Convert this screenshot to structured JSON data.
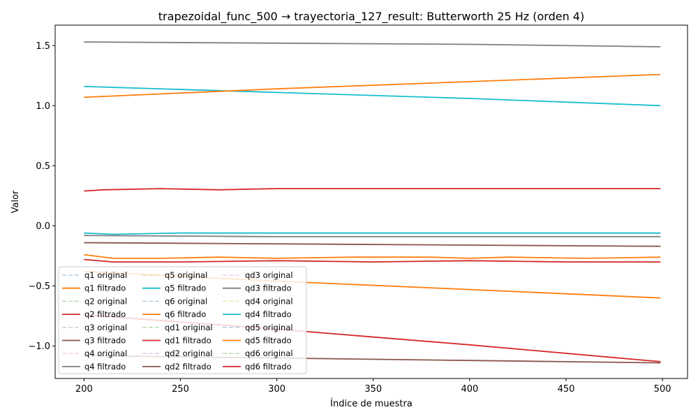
{
  "chart_data": {
    "type": "line",
    "title": "trapezoidal_func_500 → trayectoria_127_result: Butterworth 25 Hz (orden 4)",
    "xlabel": "Índice de muestra",
    "ylabel": "Valor",
    "xlim": [
      185,
      513
    ],
    "ylim": [
      -1.27,
      1.67
    ],
    "x_ticks": [
      200,
      250,
      300,
      350,
      400,
      450,
      500
    ],
    "y_ticks": [
      -1.0,
      -0.5,
      0.0,
      0.5,
      1.0,
      1.5
    ],
    "x_tick_labels": [
      "200",
      "250",
      "300",
      "350",
      "400",
      "450",
      "500"
    ],
    "y_tick_labels": [
      "−1.0",
      "−0.5",
      "0.0",
      "0.5",
      "1.0",
      "1.5"
    ],
    "grid": false,
    "legend_position": "lower-left",
    "legend_columns": 3,
    "series": [
      {
        "name": "q1 original",
        "color": "#1f77b4",
        "style": "dashed",
        "alpha": 0.35,
        "x": [
          200,
          300,
          400,
          499
        ],
        "y": [
          -0.38,
          -0.46,
          -0.53,
          -0.6
        ]
      },
      {
        "name": "q1 filtrado",
        "color": "#ff7f0e",
        "style": "solid",
        "alpha": 1.0,
        "x": [
          200,
          300,
          400,
          499
        ],
        "y": [
          -0.38,
          -0.46,
          -0.53,
          -0.6
        ]
      },
      {
        "name": "q2 original",
        "color": "#2ca02c",
        "style": "dashed",
        "alpha": 0.35,
        "x": [
          200,
          215,
          250,
          300,
          350,
          400,
          450,
          499
        ],
        "y": [
          -0.28,
          -0.3,
          -0.3,
          -0.29,
          -0.3,
          -0.29,
          -0.3,
          -0.3
        ]
      },
      {
        "name": "q2 filtrado",
        "color": "#d62728",
        "style": "solid",
        "alpha": 1.0,
        "x": [
          200,
          215,
          250,
          300,
          350,
          400,
          450,
          499
        ],
        "y": [
          -0.28,
          -0.3,
          -0.3,
          -0.29,
          -0.3,
          -0.29,
          -0.3,
          -0.3
        ]
      },
      {
        "name": "q3 original",
        "color": "#7f7f7f",
        "style": "dashed",
        "alpha": 0.35,
        "x": [
          200,
          300,
          400,
          499
        ],
        "y": [
          -0.14,
          -0.15,
          -0.16,
          -0.17
        ]
      },
      {
        "name": "q3 filtrado",
        "color": "#8c564b",
        "style": "solid",
        "alpha": 1.0,
        "x": [
          200,
          300,
          400,
          499
        ],
        "y": [
          -0.14,
          -0.15,
          -0.16,
          -0.17
        ]
      },
      {
        "name": "q4 original",
        "color": "#e377c2",
        "style": "dashed",
        "alpha": 0.35,
        "x": [
          200,
          300,
          400,
          499
        ],
        "y": [
          1.53,
          1.52,
          1.51,
          1.49
        ]
      },
      {
        "name": "q4 filtrado",
        "color": "#7f7f7f",
        "style": "solid",
        "alpha": 1.0,
        "x": [
          200,
          300,
          400,
          499
        ],
        "y": [
          1.53,
          1.52,
          1.51,
          1.49
        ]
      },
      {
        "name": "q5 original",
        "color": "#bcbd22",
        "style": "dashed",
        "alpha": 0.35,
        "x": [
          200,
          300,
          400,
          499
        ],
        "y": [
          1.16,
          1.11,
          1.06,
          1.0
        ]
      },
      {
        "name": "q5 filtrado",
        "color": "#17becf",
        "style": "solid",
        "alpha": 1.0,
        "x": [
          200,
          300,
          400,
          499
        ],
        "y": [
          1.16,
          1.11,
          1.06,
          1.0
        ]
      },
      {
        "name": "q6 original",
        "color": "#1f77b4",
        "style": "dashed",
        "alpha": 0.35,
        "x": [
          200,
          300,
          400,
          499
        ],
        "y": [
          1.07,
          1.14,
          1.2,
          1.26
        ]
      },
      {
        "name": "q6 filtrado",
        "color": "#ff7f0e",
        "style": "solid",
        "alpha": 1.0,
        "x": [
          200,
          300,
          400,
          499
        ],
        "y": [
          1.07,
          1.14,
          1.2,
          1.26
        ]
      },
      {
        "name": "qd1 original",
        "color": "#2ca02c",
        "style": "dashed",
        "alpha": 0.35,
        "x": [
          200,
          210,
          240,
          270,
          300,
          345,
          380,
          400,
          420,
          450,
          470,
          499
        ],
        "y": [
          0.29,
          0.3,
          0.31,
          0.3,
          0.31,
          0.31,
          0.31,
          0.31,
          0.31,
          0.31,
          0.31,
          0.31
        ]
      },
      {
        "name": "qd1 filtrado",
        "color": "#d62728",
        "style": "solid",
        "alpha": 1.0,
        "x": [
          200,
          210,
          240,
          270,
          300,
          345,
          380,
          400,
          420,
          450,
          470,
          499
        ],
        "y": [
          0.29,
          0.3,
          0.31,
          0.3,
          0.31,
          0.31,
          0.31,
          0.31,
          0.31,
          0.31,
          0.31,
          0.31
        ]
      },
      {
        "name": "qd2 original",
        "color": "#9467bd",
        "style": "dashed",
        "alpha": 0.35,
        "x": [
          200,
          300,
          400,
          499
        ],
        "y": [
          -1.08,
          -1.1,
          -1.12,
          -1.14
        ]
      },
      {
        "name": "qd2 filtrado",
        "color": "#8c564b",
        "style": "solid",
        "alpha": 1.0,
        "x": [
          200,
          300,
          400,
          499
        ],
        "y": [
          -1.08,
          -1.1,
          -1.12,
          -1.14
        ]
      },
      {
        "name": "qd3 original",
        "color": "#e377c2",
        "style": "dashed",
        "alpha": 0.35,
        "x": [
          200,
          300,
          400,
          499
        ],
        "y": [
          -0.08,
          -0.09,
          -0.09,
          -0.09
        ]
      },
      {
        "name": "qd3 filtrado",
        "color": "#7f7f7f",
        "style": "solid",
        "alpha": 1.0,
        "x": [
          200,
          300,
          400,
          499
        ],
        "y": [
          -0.08,
          -0.09,
          -0.09,
          -0.09
        ]
      },
      {
        "name": "qd4 original",
        "color": "#bcbd22",
        "style": "dashed",
        "alpha": 0.35,
        "x": [
          200,
          215,
          250,
          300,
          350,
          400,
          450,
          499
        ],
        "y": [
          -0.06,
          -0.07,
          -0.06,
          -0.06,
          -0.06,
          -0.06,
          -0.06,
          -0.06
        ]
      },
      {
        "name": "qd4 filtrado",
        "color": "#17becf",
        "style": "solid",
        "alpha": 1.0,
        "x": [
          200,
          215,
          250,
          300,
          350,
          400,
          450,
          499
        ],
        "y": [
          -0.06,
          -0.07,
          -0.06,
          -0.06,
          -0.06,
          -0.06,
          -0.06,
          -0.06
        ]
      },
      {
        "name": "qd5 original",
        "color": "#1f77b4",
        "style": "dashed",
        "alpha": 0.35,
        "x": [
          200,
          215,
          240,
          270,
          300,
          340,
          380,
          400,
          420,
          460,
          499
        ],
        "y": [
          -0.24,
          -0.27,
          -0.27,
          -0.26,
          -0.27,
          -0.26,
          -0.26,
          -0.27,
          -0.26,
          -0.27,
          -0.26
        ]
      },
      {
        "name": "qd5 filtrado",
        "color": "#ff7f0e",
        "style": "solid",
        "alpha": 1.0,
        "x": [
          200,
          215,
          240,
          270,
          300,
          340,
          380,
          400,
          420,
          460,
          499
        ],
        "y": [
          -0.24,
          -0.27,
          -0.27,
          -0.26,
          -0.27,
          -0.26,
          -0.26,
          -0.27,
          -0.26,
          -0.27,
          -0.26
        ]
      },
      {
        "name": "qd6 original",
        "color": "#2ca02c",
        "style": "dashed",
        "alpha": 0.35,
        "x": [
          200,
          300,
          400,
          499
        ],
        "y": [
          -0.74,
          -0.86,
          -0.99,
          -1.13
        ]
      },
      {
        "name": "qd6 filtrado",
        "color": "#d62728",
        "style": "solid",
        "alpha": 1.0,
        "x": [
          200,
          300,
          400,
          499
        ],
        "y": [
          -0.74,
          -0.86,
          -0.99,
          -1.13
        ]
      }
    ]
  }
}
